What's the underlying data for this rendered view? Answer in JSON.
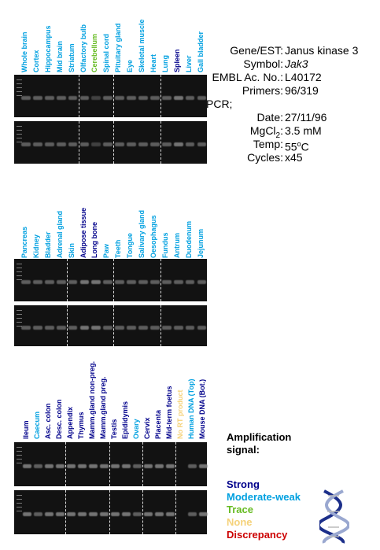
{
  "gene_info": {
    "gene_label": "Gene/EST:",
    "gene_value": "Janus kinase 3",
    "symbol_label": "Symbol:",
    "symbol_value": "Jak3",
    "embl_label": "EMBL Ac. No.:",
    "embl_value": "L40172",
    "primers_label": "Primers:",
    "primers_value": "96/319",
    "pcr_label": "PCR;",
    "date_label": "Date:",
    "date_value": "27/11/96",
    "mgcl_label": "MgCl",
    "mgcl_sub": "2",
    "mgcl_colon": ":",
    "mgcl_value": "3.5 mM",
    "temp_label": "Temp:",
    "temp_value": "55",
    "temp_sup": "o",
    "temp_unit": "C",
    "cycles_label": "Cycles:",
    "cycles_value": "x45"
  },
  "colors": {
    "strong": "#00008b",
    "moderate_weak": "#00a0e0",
    "trace": "#66bb22",
    "none": "#f5d27a",
    "discrepancy": "#cc0000"
  },
  "panels": [
    {
      "lanes": [
        {
          "label": "Whole brain",
          "signal": "moderate_weak"
        },
        {
          "label": "Cortex",
          "signal": "moderate_weak"
        },
        {
          "label": "Hippocampus",
          "signal": "moderate_weak"
        },
        {
          "label": "Mid brain",
          "signal": "moderate_weak"
        },
        {
          "label": "Striatum",
          "signal": "moderate_weak"
        },
        {
          "label": "Olfactory bulb",
          "signal": "moderate_weak"
        },
        {
          "label": "Cerebellum",
          "signal": "trace"
        },
        {
          "label": "Spinal cord",
          "signal": "moderate_weak"
        },
        {
          "label": "Pituitary gland",
          "signal": "moderate_weak"
        },
        {
          "label": "Eye",
          "signal": "moderate_weak"
        },
        {
          "label": "Skeletal muscle",
          "signal": "moderate_weak"
        },
        {
          "label": "Heart",
          "signal": "moderate_weak"
        },
        {
          "label": "Lung",
          "signal": "moderate_weak"
        },
        {
          "label": "Spleen",
          "signal": "strong"
        },
        {
          "label": "Liver",
          "signal": "moderate_weak"
        },
        {
          "label": "Gall bladder",
          "signal": "moderate_weak"
        }
      ]
    },
    {
      "lanes": [
        {
          "label": "Pancreas",
          "signal": "moderate_weak"
        },
        {
          "label": "Kidney",
          "signal": "moderate_weak"
        },
        {
          "label": "Bladder",
          "signal": "moderate_weak"
        },
        {
          "label": "Adrenal gland",
          "signal": "moderate_weak"
        },
        {
          "label": "Skin",
          "signal": "moderate_weak"
        },
        {
          "label": "Adipose tissue",
          "signal": "strong"
        },
        {
          "label": "Long bone",
          "signal": "strong"
        },
        {
          "label": "Paw",
          "signal": "moderate_weak"
        },
        {
          "label": "Teeth",
          "signal": "moderate_weak"
        },
        {
          "label": "Tongue",
          "signal": "moderate_weak"
        },
        {
          "label": "Salivary gland",
          "signal": "moderate_weak"
        },
        {
          "label": "Oesophagus",
          "signal": "moderate_weak"
        },
        {
          "label": "Fundus",
          "signal": "moderate_weak"
        },
        {
          "label": "Antrum",
          "signal": "moderate_weak"
        },
        {
          "label": "Duodenum",
          "signal": "moderate_weak"
        },
        {
          "label": "Jejunum",
          "signal": "moderate_weak"
        }
      ]
    },
    {
      "lanes": [
        {
          "label": "Ileum",
          "signal": "strong"
        },
        {
          "label": "Caecum",
          "signal": "moderate_weak"
        },
        {
          "label": "Asc. colon",
          "signal": "strong"
        },
        {
          "label": "Desc. colon",
          "signal": "strong"
        },
        {
          "label": "Appendix",
          "signal": "strong"
        },
        {
          "label": "Thymus",
          "signal": "strong"
        },
        {
          "label": "Mamm.gland non-preg.",
          "signal": "strong"
        },
        {
          "label": "Mamm.gland preg.",
          "signal": "strong"
        },
        {
          "label": "Testis",
          "signal": "strong"
        },
        {
          "label": "Epididymis",
          "signal": "strong"
        },
        {
          "label": "Ovary",
          "signal": "moderate_weak"
        },
        {
          "label": "Cervix",
          "signal": "strong"
        },
        {
          "label": "Placenta",
          "signal": "strong"
        },
        {
          "label": "Mid-term foetus",
          "signal": "strong"
        },
        {
          "label": "No RT product",
          "signal": "none"
        },
        {
          "label": "Human DNA (Top)",
          "signal": "moderate_weak"
        },
        {
          "label": "Mouse DNA (Bot.)",
          "signal": "strong"
        }
      ]
    }
  ],
  "legend": {
    "title_line1": "Amplification",
    "title_line2": "signal:",
    "items": [
      {
        "key": "strong",
        "label": "Strong"
      },
      {
        "key": "moderate_weak",
        "label": "Moderate-weak"
      },
      {
        "key": "trace",
        "label": "Trace"
      },
      {
        "key": "none",
        "label": "None"
      },
      {
        "key": "discrepancy",
        "label": "Discrepancy"
      }
    ],
    "icon": "dna-helix-icon"
  }
}
